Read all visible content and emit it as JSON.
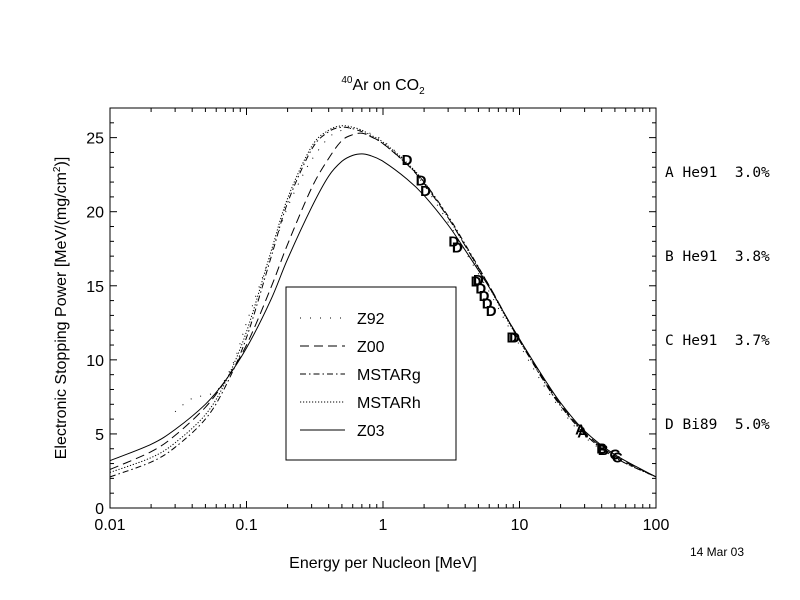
{
  "chart_data": {
    "type": "line",
    "title_mass_number": "40",
    "title_main": "Ar on CO",
    "title_subscript": "2",
    "xlabel": "Energy per Nucleon [MeV]",
    "ylabel_prefix": "Electronic Stopping Power [MeV/(mg/cm",
    "ylabel_sup": "2",
    "ylabel_suffix": ")]",
    "xscale": "log",
    "xlim": [
      0.01,
      100
    ],
    "ylim": [
      0,
      27
    ],
    "x_ticks": [
      0.01,
      0.1,
      1,
      10,
      100
    ],
    "x_tick_labels": [
      "0.01",
      "0.1",
      "1",
      "10",
      "100"
    ],
    "y_ticks": [
      0,
      5,
      10,
      15,
      20,
      25
    ],
    "y_tick_labels": [
      "0",
      "5",
      "10",
      "15",
      "20",
      "25"
    ],
    "grid": false,
    "legend_position": "lower-center-left",
    "series": [
      {
        "name": "Z92",
        "style": "dotted-sparse",
        "x": [
          0.03,
          0.04,
          0.06,
          0.08,
          0.1,
          0.13,
          0.17,
          0.2,
          0.25,
          0.3,
          0.4,
          0.5,
          0.6,
          0.8,
          1,
          1.5,
          2,
          3,
          4,
          6,
          8,
          10,
          15,
          20,
          30,
          50,
          100
        ],
        "y": [
          6.5,
          7.4,
          7.9,
          9.8,
          12.5,
          15.5,
          18.5,
          20.3,
          22.2,
          23.5,
          25.0,
          25.5,
          25.6,
          25.3,
          24.8,
          23.3,
          21.8,
          19.3,
          17.3,
          14.6,
          12.5,
          11.0,
          8.3,
          6.7,
          4.8,
          3.4,
          2.1
        ]
      },
      {
        "name": "Z00",
        "style": "dashed",
        "x": [
          0.01,
          0.02,
          0.03,
          0.05,
          0.07,
          0.1,
          0.15,
          0.2,
          0.3,
          0.4,
          0.5,
          0.6,
          0.7,
          0.8,
          1,
          1.5,
          2,
          3,
          4,
          6,
          8,
          10,
          15,
          20,
          30,
          50,
          100
        ],
        "y": [
          2.6,
          3.8,
          4.9,
          6.8,
          8.6,
          11.0,
          14.8,
          17.8,
          21.6,
          23.6,
          24.8,
          25.2,
          25.3,
          25.1,
          24.6,
          23.2,
          21.9,
          19.6,
          17.7,
          15.0,
          12.9,
          11.4,
          8.7,
          7.0,
          5.1,
          3.5,
          2.1
        ]
      },
      {
        "name": "MSTARg",
        "style": "dash-dot",
        "x": [
          0.01,
          0.02,
          0.03,
          0.05,
          0.07,
          0.1,
          0.15,
          0.2,
          0.3,
          0.4,
          0.5,
          0.6,
          0.7,
          0.8,
          1,
          1.5,
          2,
          3,
          4,
          6,
          8,
          10,
          15,
          20,
          30,
          50,
          100
        ],
        "y": [
          2.1,
          3.1,
          4.1,
          6.0,
          8.2,
          11.5,
          16.8,
          20.6,
          24.2,
          25.4,
          25.7,
          25.6,
          25.4,
          25.1,
          24.6,
          23.2,
          22.0,
          19.7,
          17.8,
          15.0,
          12.9,
          11.3,
          8.6,
          6.9,
          5.0,
          3.4,
          2.1
        ]
      },
      {
        "name": "MSTARh",
        "style": "dotted",
        "x": [
          0.01,
          0.02,
          0.03,
          0.05,
          0.07,
          0.1,
          0.15,
          0.2,
          0.3,
          0.4,
          0.5,
          0.6,
          0.7,
          0.8,
          1,
          1.5,
          2,
          3,
          4,
          6,
          8,
          10,
          15,
          20,
          30,
          50,
          100
        ],
        "y": [
          2.4,
          3.4,
          4.4,
          6.3,
          8.5,
          11.9,
          17.2,
          20.9,
          24.4,
          25.5,
          25.8,
          25.7,
          25.5,
          25.2,
          24.7,
          23.3,
          22.0,
          19.6,
          17.7,
          14.9,
          12.8,
          11.3,
          8.6,
          6.9,
          5.0,
          3.4,
          2.1
        ]
      },
      {
        "name": "Z03",
        "style": "solid",
        "x": [
          0.01,
          0.02,
          0.03,
          0.05,
          0.07,
          0.1,
          0.15,
          0.2,
          0.3,
          0.4,
          0.5,
          0.6,
          0.7,
          0.8,
          1,
          1.5,
          2,
          3,
          4,
          6,
          8,
          10,
          15,
          20,
          30,
          50,
          100
        ],
        "y": [
          3.2,
          4.3,
          5.3,
          7.0,
          8.6,
          10.8,
          14.0,
          16.8,
          20.3,
          22.4,
          23.4,
          23.8,
          23.9,
          23.8,
          23.4,
          22.2,
          21.1,
          19.1,
          17.4,
          14.9,
          12.9,
          11.4,
          8.8,
          7.1,
          5.2,
          3.6,
          2.1
        ]
      }
    ],
    "data_points": [
      {
        "label": "A",
        "x": [
          28,
          29
        ],
        "y": [
          5.3,
          5.1
        ]
      },
      {
        "label": "B",
        "x": [
          40,
          41
        ],
        "y": [
          4.0,
          3.9
        ]
      },
      {
        "label": "C",
        "x": [
          50,
          52
        ],
        "y": [
          3.6,
          3.4
        ]
      },
      {
        "label": "D",
        "x": [
          1.5,
          1.9,
          2.05,
          3.3,
          3.5,
          4.8,
          5.0,
          5.2,
          5.5,
          5.8,
          6.2,
          8.8,
          9.2
        ],
        "y": [
          23.5,
          22.1,
          21.4,
          18.0,
          17.6,
          15.3,
          15.4,
          14.8,
          14.3,
          13.8,
          13.3,
          11.5,
          11.5
        ]
      }
    ]
  },
  "references": [
    {
      "label": "A",
      "source": "He91",
      "error": "3.0%"
    },
    {
      "label": "B",
      "source": "He91",
      "error": "3.8%"
    },
    {
      "label": "C",
      "source": "He91",
      "error": "3.7%"
    },
    {
      "label": "D",
      "source": "Bi89",
      "error": "5.0%"
    }
  ],
  "date_stamp": "14 Mar 03"
}
